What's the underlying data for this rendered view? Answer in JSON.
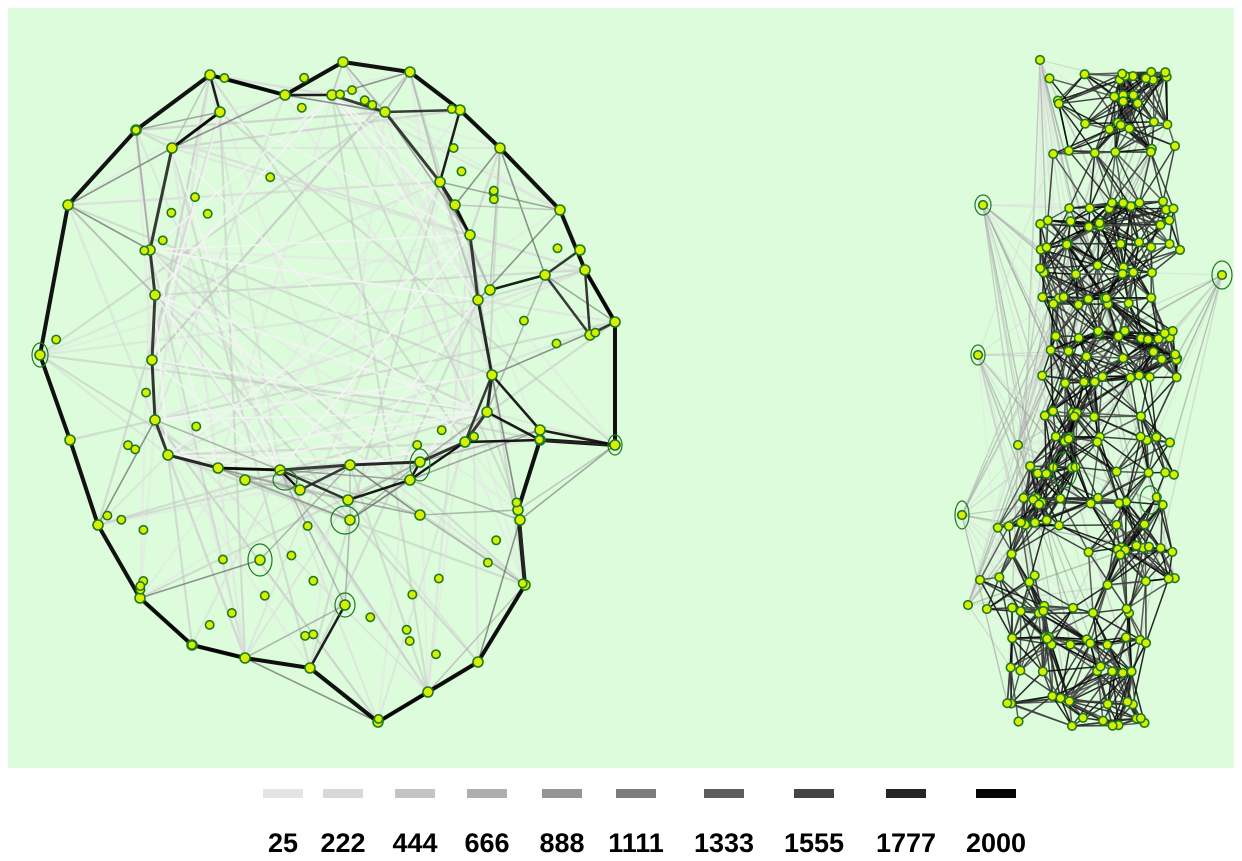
{
  "figure": {
    "background": "#dcfcdc",
    "node_fill": "#d8f000",
    "node_stroke": "#1f7a1f",
    "panels": [
      "ring-shaped-point-graph",
      "elongated-point-graph"
    ]
  },
  "legend": {
    "items": [
      {
        "label": "25",
        "color": "#e4e4e4"
      },
      {
        "label": "222",
        "color": "#d8d8d8"
      },
      {
        "label": "444",
        "color": "#c4c4c4"
      },
      {
        "label": "666",
        "color": "#aeaeae"
      },
      {
        "label": "888",
        "color": "#959595"
      },
      {
        "label": "1111",
        "color": "#7c7c7c"
      },
      {
        "label": "1333",
        "color": "#5e5e5e"
      },
      {
        "label": "1555",
        "color": "#444444"
      },
      {
        "label": "1777",
        "color": "#262626"
      },
      {
        "label": "2000",
        "color": "#050505"
      }
    ]
  }
}
